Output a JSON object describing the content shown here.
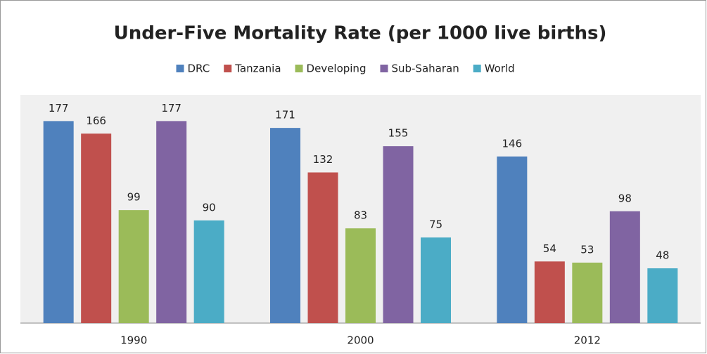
{
  "chart_data": {
    "type": "bar",
    "title": "Under-Five Mortality Rate (per 1000 live births)",
    "categories": [
      "1990",
      "2000",
      "2012"
    ],
    "series": [
      {
        "name": "DRC",
        "color": "#4f81bd",
        "values": [
          177,
          171,
          146
        ]
      },
      {
        "name": "Tanzania",
        "color": "#c0504d",
        "values": [
          166,
          132,
          54
        ]
      },
      {
        "name": "Developing",
        "color": "#9bbb59",
        "values": [
          99,
          83,
          53
        ]
      },
      {
        "name": "Sub-Saharan",
        "color": "#8064a2",
        "values": [
          177,
          155,
          98
        ]
      },
      {
        "name": "World",
        "color": "#4bacc6",
        "values": [
          90,
          75,
          48
        ]
      }
    ],
    "ylim": [
      0,
      200
    ],
    "legend": "top"
  }
}
